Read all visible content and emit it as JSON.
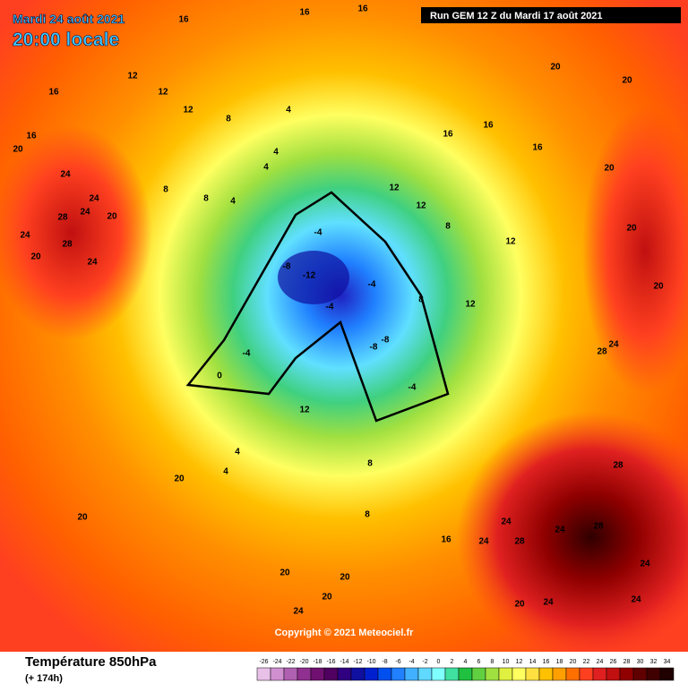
{
  "header": {
    "date": "Mardi 24 août 2021",
    "time": "20:00 locale",
    "run": "Run GEM 12 Z du Mardi 17 août 2021",
    "copyright": "Copyright © 2021 Meteociel.fr"
  },
  "footer": {
    "title": "Température 850hPa",
    "lead": "(+ 174h)"
  },
  "colorbar": {
    "ticks": [
      -26,
      -24,
      -22,
      -20,
      -18,
      -16,
      -14,
      -12,
      -10,
      -8,
      -6,
      -4,
      -2,
      0,
      2,
      4,
      6,
      8,
      10,
      12,
      14,
      16,
      18,
      20,
      22,
      24,
      26,
      28,
      30,
      32,
      34
    ],
    "colors": [
      "#e8c0e8",
      "#d090d0",
      "#b060b0",
      "#903090",
      "#701070",
      "#500060",
      "#300080",
      "#1010a0",
      "#0020d0",
      "#0050f0",
      "#2080ff",
      "#40b0ff",
      "#60d8ff",
      "#80ffff",
      "#40e0a0",
      "#20c040",
      "#60d040",
      "#a0e040",
      "#e0f040",
      "#ffff60",
      "#ffe040",
      "#ffc000",
      "#ffa000",
      "#ff7000",
      "#ff4020",
      "#e02020",
      "#c01010",
      "#900000",
      "#600000",
      "#400000",
      "#200000"
    ]
  },
  "map_labels": [
    16,
    16,
    16,
    16,
    16,
    12,
    12,
    12,
    8,
    4,
    4,
    4,
    8,
    8,
    4,
    24,
    24,
    28,
    24,
    24,
    28,
    24,
    20,
    20,
    -4,
    -8,
    -12,
    -4,
    -4,
    -8,
    -8,
    -4,
    -4,
    0,
    12,
    4,
    4,
    20,
    20,
    20,
    16,
    16,
    16,
    12,
    8,
    12,
    20,
    20,
    20,
    20,
    20,
    24,
    28,
    28,
    28,
    24,
    28,
    24,
    16,
    24,
    24,
    24,
    24,
    20,
    8,
    20,
    20,
    20,
    24,
    8,
    8,
    12,
    12
  ]
}
